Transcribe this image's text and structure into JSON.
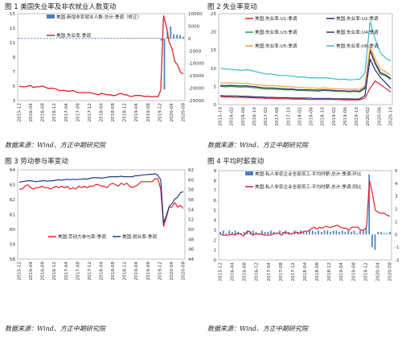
{
  "figures": [
    {
      "id": "fig1",
      "title": "图 1 美国失业率及非农就业人数变动",
      "source": "数据来源：Wind、方正中期研究院",
      "chart_data": {
        "type": "line+bar",
        "x_labels": [
          "2015-12",
          "2016-04",
          "2016-08",
          "2016-12",
          "2017-04",
          "2017-08",
          "2017-12",
          "2018-04",
          "2018-08",
          "2018-12",
          "2019-04",
          "2019-08",
          "2019-12",
          "2020-04",
          "2020-08"
        ],
        "left_axis": {
          "min": 3,
          "max": 15,
          "ticks": [
            3,
            5,
            7,
            9,
            11,
            13,
            15
          ]
        },
        "right_axis": {
          "min": -25000,
          "max": 10000,
          "ticks": [
            10000,
            5000,
            0,
            -5000,
            -10000,
            -15000,
            -20000,
            -25000
          ]
        },
        "series": [
          {
            "name": "美国:新增非农就业人数:总计:季调（修正）",
            "type": "bar",
            "axis": "right",
            "color": "#4a7fc1",
            "values": [
              250,
              200,
              230,
              150,
              200,
              180,
              190,
              210,
              200,
              180,
              230,
              120,
              150,
              230,
              180,
              200,
              190,
              170,
              200,
              220,
              210,
              190,
              180,
              200,
              230,
              180,
              210,
              190,
              220,
              200,
              180,
              200,
              230,
              190,
              210,
              180,
              190,
              200,
              210,
              200,
              180,
              190,
              200,
              210,
              200,
              -800,
              -20500,
              2700,
              4800,
              1700,
              1500,
              1400,
              600
            ]
          },
          {
            "name": "美国:失业率:季调",
            "type": "line",
            "axis": "left",
            "color": "#e0202a",
            "values": [
              5.0,
              4.9,
              4.9,
              5.0,
              5.1,
              4.8,
              4.9,
              4.9,
              5.0,
              4.9,
              4.7,
              4.7,
              4.7,
              4.6,
              4.4,
              4.4,
              4.4,
              4.3,
              4.3,
              4.4,
              4.2,
              4.1,
              4.1,
              4.1,
              4.1,
              4.1,
              4.0,
              3.9,
              3.8,
              4.0,
              3.9,
              3.8,
              3.8,
              3.7,
              3.7,
              3.9,
              4.0,
              3.8,
              3.8,
              3.6,
              3.6,
              3.7,
              3.7,
              3.7,
              3.6,
              3.6,
              3.6,
              3.5,
              3.6,
              3.5,
              4.4,
              14.7,
              13.3,
              11.1,
              10.2,
              8.4,
              7.9,
              6.9,
              6.7
            ]
          }
        ]
      }
    },
    {
      "id": "fig2",
      "title": "图 2 失业率变动",
      "source": "数据来源：Wind、方正中期研究院",
      "chart_data": {
        "type": "line",
        "x_labels": [
          "2015-10",
          "2016-02",
          "2016-06",
          "2016-10",
          "2017-02",
          "2017-06",
          "2017-10",
          "2018-02",
          "2018-06",
          "2018-10",
          "2019-02",
          "2019-06",
          "2019-10",
          "2020-02",
          "2020-06",
          "2020-10"
        ],
        "y_axis": {
          "min": 0,
          "max": 25,
          "ticks": [
            0,
            5,
            10,
            15,
            20,
            25
          ]
        },
        "series": [
          {
            "name": "美国:失业率:U1:季调",
            "color": "#e0202a",
            "values": [
              2.2,
              2.1,
              2.1,
              2.0,
              2.0,
              1.9,
              1.9,
              1.8,
              1.8,
              1.7,
              1.7,
              1.6,
              1.6,
              1.6,
              1.5,
              1.5,
              1.5,
              1.4,
              1.4,
              1.4,
              1.4,
              1.4,
              1.4,
              1.4,
              1.3,
              1.3,
              1.3,
              1.3,
              1.8,
              4.5,
              6.5,
              5.5,
              4.5,
              3.5
            ]
          },
          {
            "name": "美国:失业率:U2:季调",
            "color": "#1a2a7a",
            "values": [
              2.5,
              2.4,
              2.4,
              2.4,
              2.3,
              2.3,
              2.2,
              2.1,
              2.1,
              2.0,
              2.0,
              1.9,
              1.9,
              1.9,
              1.8,
              1.8,
              1.8,
              1.8,
              1.7,
              1.7,
              1.7,
              1.7,
              1.6,
              1.6,
              1.6,
              1.6,
              1.5,
              1.6,
              2.5,
              12.5,
              9.5,
              7.5,
              6.0,
              4.5
            ]
          },
          {
            "name": "美国:失业率:U3:季调",
            "color": "#2a9a4a",
            "values": [
              5.0,
              4.9,
              5.0,
              4.9,
              4.8,
              4.9,
              4.7,
              4.6,
              4.4,
              4.3,
              4.3,
              4.2,
              4.1,
              4.1,
              4.1,
              3.9,
              3.9,
              3.8,
              3.8,
              3.7,
              3.9,
              3.8,
              3.7,
              3.6,
              3.6,
              3.5,
              3.6,
              3.5,
              4.4,
              14.7,
              11.1,
              8.4,
              7.9,
              6.9
            ]
          },
          {
            "name": "美国:失业率:U4:季调",
            "color": "#4a2a6a",
            "values": [
              5.3,
              5.2,
              5.3,
              5.2,
              5.1,
              5.2,
              5.0,
              4.9,
              4.7,
              4.6,
              4.6,
              4.5,
              4.4,
              4.3,
              4.3,
              4.1,
              4.1,
              4.1,
              4.0,
              4.0,
              4.1,
              4.0,
              3.9,
              3.8,
              3.8,
              3.7,
              3.8,
              3.7,
              4.7,
              15.0,
              11.5,
              8.8,
              8.2,
              7.2
            ]
          },
          {
            "name": "美国:失业率:U5:季调",
            "color": "#f0a040",
            "values": [
              6.0,
              5.9,
              6.0,
              5.9,
              5.8,
              5.9,
              5.6,
              5.5,
              5.3,
              5.2,
              5.2,
              5.1,
              5.0,
              4.9,
              4.9,
              4.7,
              4.7,
              4.6,
              4.6,
              4.5,
              4.6,
              4.5,
              4.4,
              4.3,
              4.3,
              4.2,
              4.3,
              4.2,
              5.2,
              16.0,
              12.5,
              9.8,
              9.0,
              8.0
            ]
          },
          {
            "name": "美国:失业率:U6:季调",
            "color": "#3ab8d8",
            "values": [
              10.0,
              9.8,
              9.7,
              9.6,
              9.4,
              9.6,
              9.4,
              9.0,
              8.7,
              8.4,
              8.4,
              8.1,
              8.0,
              8.0,
              7.8,
              7.6,
              7.6,
              7.4,
              7.4,
              7.3,
              7.4,
              7.3,
              7.1,
              6.9,
              7.0,
              6.8,
              6.9,
              7.0,
              8.7,
              22.8,
              18.0,
              14.2,
              12.8,
              12.0
            ]
          }
        ]
      }
    },
    {
      "id": "fig3",
      "title": "图 3 劳动参与率变动",
      "source": "数据来源：Wind、方正中期研究院",
      "chart_data": {
        "type": "line",
        "x_labels": [
          "2015-12",
          "2016-04",
          "2016-08",
          "2016-12",
          "2017-04",
          "2017-08",
          "2017-12",
          "2018-04",
          "2018-08",
          "2018-12",
          "2019-04",
          "2019-08",
          "2019-12",
          "2020-04",
          "2020-08"
        ],
        "left_axis": {
          "min": 58,
          "max": 64,
          "ticks": [
            58,
            59,
            60,
            61,
            62,
            63,
            64
          ]
        },
        "right_axis": {
          "min": 44,
          "max": 62,
          "ticks": [
            44,
            46,
            48,
            50,
            52,
            54,
            56,
            58,
            60,
            62
          ]
        },
        "series": [
          {
            "name": "美国:劳动力参与率:季调",
            "axis": "left",
            "color": "#e0202a",
            "values": [
              62.7,
              62.7,
              62.9,
              63.0,
              62.8,
              62.7,
              62.8,
              62.8,
              62.9,
              62.8,
              62.8,
              62.7,
              62.8,
              62.9,
              62.8,
              62.9,
              62.8,
              62.9,
              62.7,
              62.8,
              62.7,
              62.9,
              62.8,
              62.9,
              62.8,
              62.9,
              62.9,
              63.0,
              63.0,
              62.9,
              62.9,
              62.8,
              63.0,
              63.1,
              63.0,
              62.9,
              63.1,
              63.0,
              63.1,
              62.9,
              62.8,
              62.9,
              63.0,
              63.2,
              63.2,
              63.2,
              63.2,
              63.2,
              63.4,
              63.4,
              62.7,
              60.2,
              60.8,
              61.5,
              61.5,
              61.8,
              61.5,
              61.6,
              61.4
            ]
          },
          {
            "name": "美国:就业率:季调",
            "axis": "right",
            "color": "#1a3a8a",
            "values": [
              59.5,
              59.6,
              59.7,
              59.8,
              59.8,
              59.7,
              59.6,
              59.7,
              59.8,
              59.8,
              59.7,
              59.8,
              59.8,
              59.9,
              60.0,
              59.9,
              60.0,
              60.1,
              60.0,
              60.1,
              60.0,
              60.1,
              60.1,
              60.2,
              60.1,
              60.3,
              60.4,
              60.4,
              60.4,
              60.3,
              60.4,
              60.5,
              60.6,
              60.6,
              60.6,
              60.6,
              60.7,
              60.6,
              60.6,
              60.6,
              60.6,
              60.8,
              60.8,
              60.9,
              61.0,
              61.0,
              61.1,
              61.1,
              61.2,
              60.9,
              60.0,
              51.3,
              52.8,
              54.6,
              55.2,
              56.1,
              56.5,
              57.4,
              57.6
            ]
          }
        ]
      }
    },
    {
      "id": "fig4",
      "title": "图 4 平均时薪变动",
      "source": "数据来源：Wind、方正中期研究院",
      "chart_data": {
        "type": "line+bar",
        "x_labels": [
          "2015-12",
          "2016-04",
          "2016-08",
          "2016-12",
          "2017-04",
          "2017-08",
          "2017-12",
          "2018-04",
          "2018-08",
          "2018-12",
          "2019-04",
          "2019-08",
          "2019-12",
          "2020-04",
          "2020-08"
        ],
        "left_axis": {
          "min": 0,
          "max": 9,
          "ticks": [
            0,
            1,
            2,
            3,
            4,
            5,
            6,
            7,
            8,
            9
          ]
        },
        "right_axis": {
          "min": -2,
          "max": 5,
          "ticks": [
            5,
            4,
            3,
            2,
            1,
            0,
            -1,
            -2
          ]
        },
        "series": [
          {
            "name": "美国:私人非农企业全部员工:平均时薪:总计:季调:环比",
            "type": "bar",
            "axis": "right",
            "color": "#4a7fc1",
            "values": [
              0.2,
              0.3,
              0.1,
              0.3,
              0.2,
              0.3,
              0.2,
              0.1,
              0.2,
              0.3,
              0.2,
              0.3,
              0.2,
              0.1,
              0.3,
              0.2,
              0.2,
              0.3,
              0.2,
              0.1,
              0.3,
              0.2,
              0.3,
              0.2,
              0.1,
              0.3,
              0.2,
              0.3,
              0.2,
              0.2,
              0.3,
              0.3,
              0.2,
              0.3,
              0.2,
              0.3,
              0.3,
              0.2,
              0.3,
              0.3,
              0.2,
              0.3,
              0.2,
              0.3,
              0.2,
              0.3,
              0.1,
              0.3,
              0.3,
              0.5,
              4.7,
              -1.0,
              -1.2,
              0.2,
              0.2,
              0.1,
              0.1,
              0.2
            ]
          },
          {
            "name": "美国:私人非农企业全部员工:平均时薪:总计:季调:同比",
            "type": "line",
            "axis": "left",
            "color": "#e0202a",
            "values": [
              2.6,
              2.5,
              2.5,
              2.5,
              2.6,
              2.5,
              2.7,
              2.6,
              2.4,
              2.8,
              2.9,
              2.5,
              2.6,
              2.6,
              2.6,
              2.5,
              2.5,
              2.5,
              2.6,
              2.7,
              2.7,
              2.5,
              2.8,
              2.7,
              2.6,
              2.7,
              2.8,
              2.7,
              2.8,
              2.9,
              2.9,
              3.1,
              3.3,
              3.1,
              3.3,
              3.2,
              3.4,
              3.3,
              3.3,
              3.4,
              3.5,
              3.3,
              3.2,
              3.2,
              3.0,
              3.3,
              3.3,
              3.3,
              3.0,
              3.0,
              3.3,
              8.0,
              6.7,
              5.0,
              4.8,
              4.7,
              4.7,
              4.5,
              4.4
            ]
          }
        ]
      }
    }
  ]
}
